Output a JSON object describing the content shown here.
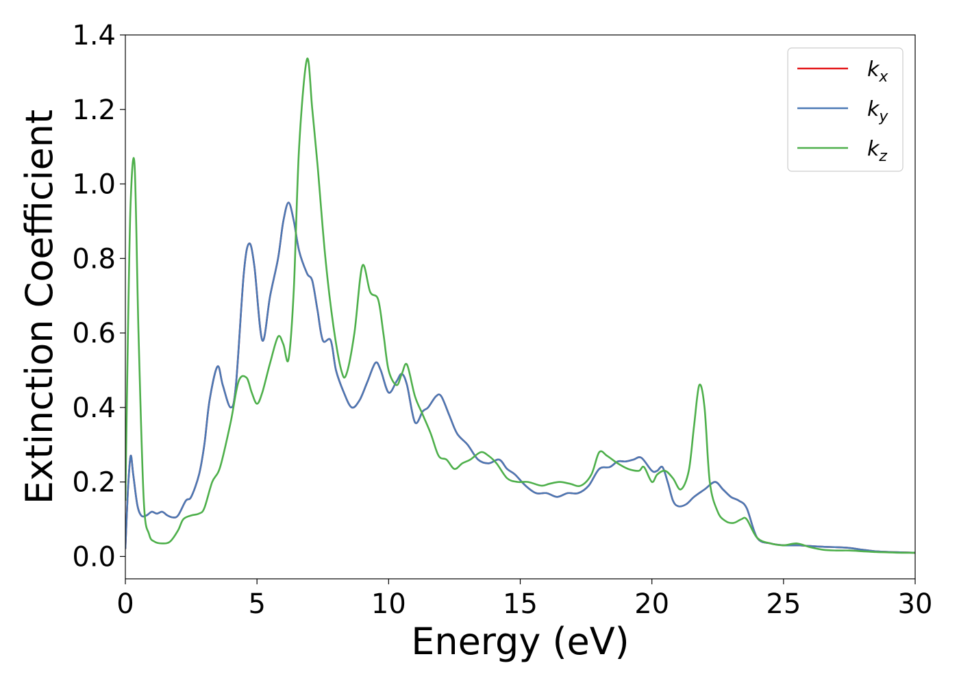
{
  "chart_data": {
    "type": "line",
    "title": "",
    "xlabel": "Energy (eV)",
    "ylabel": "Extinction Coefficient",
    "xlim": [
      0,
      30
    ],
    "ylim": [
      -0.06,
      1.4
    ],
    "xticks": [
      0,
      5,
      10,
      15,
      20,
      25,
      30
    ],
    "xtick_labels": [
      "0",
      "5",
      "10",
      "15",
      "20",
      "25",
      "30"
    ],
    "yticks": [
      0.0,
      0.2,
      0.4,
      0.6,
      0.8,
      1.0,
      1.2,
      1.4
    ],
    "ytick_labels": [
      "0.0",
      "0.2",
      "0.4",
      "0.6",
      "0.8",
      "1.0",
      "1.2",
      "1.4"
    ],
    "grid": false,
    "legend_position": "top-right",
    "series": [
      {
        "name": "kx",
        "legend_base": "k",
        "legend_sub": "x",
        "color": "#e41a1c",
        "x": [
          0,
          0.1,
          0.2,
          0.3,
          0.45,
          0.6,
          0.8,
          1.0,
          1.2,
          1.4,
          1.6,
          1.8,
          2.0,
          2.3,
          2.5,
          2.8,
          3.0,
          3.2,
          3.5,
          3.7,
          4.0,
          4.2,
          4.5,
          4.7,
          4.9,
          5.2,
          5.5,
          5.8,
          6.0,
          6.2,
          6.4,
          6.6,
          6.9,
          7.1,
          7.3,
          7.5,
          7.8,
          8.0,
          8.3,
          8.6,
          8.9,
          9.2,
          9.5,
          9.7,
          10.0,
          10.3,
          10.5,
          10.7,
          11.0,
          11.3,
          11.5,
          11.8,
          12.0,
          12.3,
          12.6,
          13.0,
          13.4,
          13.8,
          14.2,
          14.5,
          14.8,
          15.2,
          15.6,
          16.0,
          16.4,
          16.8,
          17.2,
          17.6,
          18.0,
          18.4,
          18.7,
          19.0,
          19.3,
          19.6,
          20.0,
          20.2,
          20.4,
          20.6,
          20.8,
          21.0,
          21.3,
          21.6,
          22.0,
          22.4,
          22.7,
          23.0,
          23.3,
          23.6,
          24.0,
          24.5,
          25.0,
          25.5,
          26.0,
          26.5,
          27.0,
          27.5,
          28.0,
          28.5,
          29.0,
          29.5,
          30.0
        ],
        "y": [
          0.02,
          0.18,
          0.27,
          0.22,
          0.14,
          0.11,
          0.11,
          0.12,
          0.115,
          0.12,
          0.11,
          0.105,
          0.11,
          0.15,
          0.16,
          0.22,
          0.3,
          0.42,
          0.51,
          0.46,
          0.4,
          0.46,
          0.76,
          0.84,
          0.78,
          0.58,
          0.7,
          0.8,
          0.9,
          0.95,
          0.9,
          0.82,
          0.76,
          0.74,
          0.66,
          0.58,
          0.58,
          0.5,
          0.44,
          0.4,
          0.42,
          0.47,
          0.52,
          0.5,
          0.44,
          0.47,
          0.49,
          0.46,
          0.36,
          0.39,
          0.4,
          0.43,
          0.43,
          0.38,
          0.33,
          0.3,
          0.26,
          0.25,
          0.26,
          0.235,
          0.22,
          0.19,
          0.17,
          0.17,
          0.16,
          0.17,
          0.17,
          0.19,
          0.235,
          0.24,
          0.255,
          0.255,
          0.26,
          0.265,
          0.23,
          0.23,
          0.24,
          0.2,
          0.15,
          0.135,
          0.14,
          0.16,
          0.18,
          0.2,
          0.18,
          0.16,
          0.15,
          0.13,
          0.05,
          0.035,
          0.03,
          0.03,
          0.028,
          0.026,
          0.025,
          0.023,
          0.018,
          0.014,
          0.012,
          0.011,
          0.01
        ]
      },
      {
        "name": "ky",
        "legend_base": "k",
        "legend_sub": "y",
        "color": "#4a78b4",
        "x": [
          0,
          0.1,
          0.2,
          0.3,
          0.45,
          0.6,
          0.8,
          1.0,
          1.2,
          1.4,
          1.6,
          1.8,
          2.0,
          2.3,
          2.5,
          2.8,
          3.0,
          3.2,
          3.5,
          3.7,
          4.0,
          4.2,
          4.5,
          4.7,
          4.9,
          5.2,
          5.5,
          5.8,
          6.0,
          6.2,
          6.4,
          6.6,
          6.9,
          7.1,
          7.3,
          7.5,
          7.8,
          8.0,
          8.3,
          8.6,
          8.9,
          9.2,
          9.5,
          9.7,
          10.0,
          10.3,
          10.5,
          10.7,
          11.0,
          11.3,
          11.5,
          11.8,
          12.0,
          12.3,
          12.6,
          13.0,
          13.4,
          13.8,
          14.2,
          14.5,
          14.8,
          15.2,
          15.6,
          16.0,
          16.4,
          16.8,
          17.2,
          17.6,
          18.0,
          18.4,
          18.7,
          19.0,
          19.3,
          19.6,
          20.0,
          20.2,
          20.4,
          20.6,
          20.8,
          21.0,
          21.3,
          21.6,
          22.0,
          22.4,
          22.7,
          23.0,
          23.3,
          23.6,
          24.0,
          24.5,
          25.0,
          25.5,
          26.0,
          26.5,
          27.0,
          27.5,
          28.0,
          28.5,
          29.0,
          29.5,
          30.0
        ],
        "y": [
          0.02,
          0.18,
          0.27,
          0.22,
          0.14,
          0.11,
          0.11,
          0.12,
          0.115,
          0.12,
          0.11,
          0.105,
          0.11,
          0.15,
          0.16,
          0.22,
          0.3,
          0.42,
          0.51,
          0.46,
          0.4,
          0.46,
          0.76,
          0.84,
          0.78,
          0.58,
          0.7,
          0.8,
          0.9,
          0.95,
          0.9,
          0.82,
          0.76,
          0.74,
          0.66,
          0.58,
          0.58,
          0.5,
          0.44,
          0.4,
          0.42,
          0.47,
          0.52,
          0.5,
          0.44,
          0.47,
          0.49,
          0.46,
          0.36,
          0.39,
          0.4,
          0.43,
          0.43,
          0.38,
          0.33,
          0.3,
          0.26,
          0.25,
          0.26,
          0.235,
          0.22,
          0.19,
          0.17,
          0.17,
          0.16,
          0.17,
          0.17,
          0.19,
          0.235,
          0.24,
          0.255,
          0.255,
          0.26,
          0.265,
          0.23,
          0.23,
          0.24,
          0.2,
          0.15,
          0.135,
          0.14,
          0.16,
          0.18,
          0.2,
          0.18,
          0.16,
          0.15,
          0.13,
          0.05,
          0.035,
          0.03,
          0.03,
          0.028,
          0.026,
          0.025,
          0.023,
          0.018,
          0.014,
          0.012,
          0.011,
          0.01
        ]
      },
      {
        "name": "kz",
        "legend_base": "k",
        "legend_sub": "z",
        "color": "#4daf4a",
        "x": [
          0,
          0.1,
          0.2,
          0.35,
          0.5,
          0.7,
          0.9,
          1.1,
          1.4,
          1.7,
          2.0,
          2.2,
          2.5,
          2.8,
          3.0,
          3.3,
          3.6,
          4.0,
          4.3,
          4.6,
          4.8,
          5.0,
          5.2,
          5.5,
          5.8,
          6.0,
          6.2,
          6.4,
          6.6,
          6.9,
          7.1,
          7.3,
          7.6,
          7.9,
          8.2,
          8.4,
          8.7,
          9.0,
          9.3,
          9.6,
          9.8,
          10.0,
          10.3,
          10.5,
          10.7,
          11.0,
          11.3,
          11.6,
          11.9,
          12.2,
          12.5,
          12.8,
          13.1,
          13.5,
          13.8,
          14.1,
          14.5,
          14.9,
          15.3,
          15.8,
          16.1,
          16.5,
          16.9,
          17.3,
          17.7,
          18.0,
          18.3,
          18.7,
          19.1,
          19.5,
          19.7,
          20.0,
          20.2,
          20.5,
          20.8,
          21.1,
          21.4,
          21.6,
          21.8,
          22.0,
          22.2,
          22.5,
          22.8,
          23.1,
          23.4,
          23.6,
          24.0,
          24.5,
          25.0,
          25.5,
          26.0,
          26.5,
          27.0,
          27.5,
          28.0,
          28.5,
          29.0,
          29.5,
          30.0
        ],
        "y": [
          0.15,
          0.6,
          0.95,
          1.05,
          0.6,
          0.15,
          0.06,
          0.04,
          0.035,
          0.04,
          0.07,
          0.1,
          0.11,
          0.115,
          0.13,
          0.2,
          0.24,
          0.36,
          0.47,
          0.48,
          0.44,
          0.41,
          0.44,
          0.52,
          0.59,
          0.57,
          0.53,
          0.72,
          1.1,
          1.335,
          1.2,
          1.05,
          0.8,
          0.62,
          0.5,
          0.49,
          0.6,
          0.78,
          0.71,
          0.69,
          0.6,
          0.5,
          0.46,
          0.49,
          0.515,
          0.43,
          0.38,
          0.33,
          0.27,
          0.26,
          0.235,
          0.25,
          0.26,
          0.28,
          0.27,
          0.25,
          0.21,
          0.2,
          0.2,
          0.19,
          0.195,
          0.2,
          0.195,
          0.19,
          0.22,
          0.28,
          0.27,
          0.25,
          0.235,
          0.23,
          0.24,
          0.2,
          0.22,
          0.23,
          0.21,
          0.18,
          0.23,
          0.35,
          0.46,
          0.4,
          0.2,
          0.12,
          0.095,
          0.09,
          0.1,
          0.1,
          0.05,
          0.035,
          0.03,
          0.035,
          0.025,
          0.018,
          0.016,
          0.016,
          0.014,
          0.012,
          0.011,
          0.01,
          0.01
        ]
      }
    ]
  }
}
